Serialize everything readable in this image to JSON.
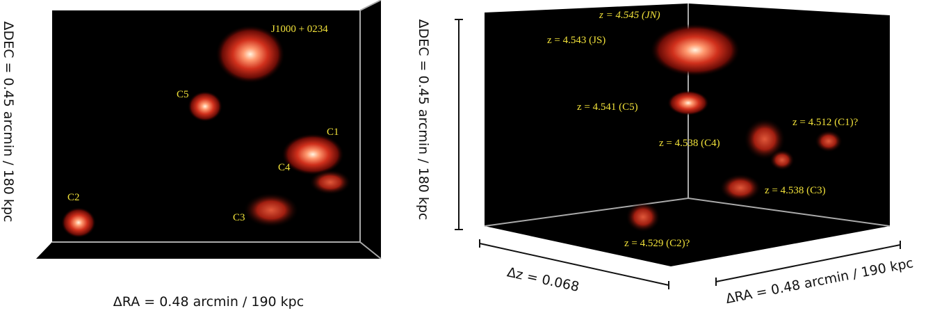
{
  "left_panel": {
    "y_label": "ΔDEC = 0.45 arcmin / 180 kpc",
    "x_label": "ΔRA = 0.48 arcmin / 190 kpc",
    "labels": [
      "J1000 + 0234",
      "C5",
      "C1",
      "C4",
      "C2",
      "C3"
    ]
  },
  "right_panel": {
    "y_label": "ΔDEC = 0.45 arcmin / 180 kpc",
    "z_label": "Δz = 0.068",
    "x_label": "ΔRA = 0.48 arcmin / 190 kpc",
    "labels": [
      "z = 4.545 (JN)",
      "z = 4.543 (JS)",
      "z = 4.541 (C5)",
      "z = 4.512 (C1)?",
      "z = 4.538 (C4)",
      "z = 4.538 (C3)",
      "z = 4.529 (C2)?"
    ]
  }
}
